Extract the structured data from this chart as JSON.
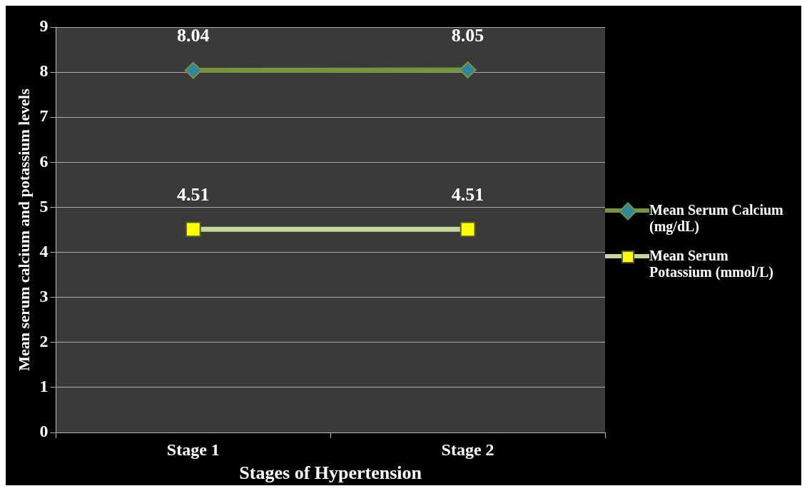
{
  "chart_data": {
    "type": "line",
    "xlabel": "Stages of Hypertension",
    "ylabel": "Mean serum calcium and potassium levels",
    "categories": [
      "Stage 1",
      "Stage 2"
    ],
    "series": [
      {
        "name": "Mean Serum Calcium (mg/dL)",
        "color": "#77933c",
        "values": [
          8.04,
          8.05
        ],
        "marker": "diamond"
      },
      {
        "name": "Mean Serum Potassium (mmol/L)",
        "color": "#c3d69b",
        "values": [
          4.51,
          4.51
        ],
        "marker": "square"
      }
    ],
    "ylim": [
      0,
      9
    ],
    "yticks": [
      0,
      1,
      2,
      3,
      4,
      5,
      6,
      7,
      8,
      9
    ],
    "grid": "y",
    "legend": "right",
    "data_labels": true
  }
}
